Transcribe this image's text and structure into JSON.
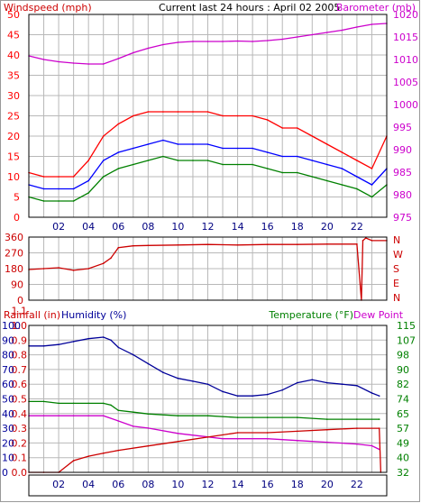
{
  "colors": {
    "windspeed": "#ff0000",
    "gust": "#0000ff",
    "wind_low": "#008000",
    "barometer": "#cc00cc",
    "direction": "#cc0000",
    "rainfall": "#cc0000",
    "humidity": "#000099",
    "temperature": "#008000",
    "dew_point": "#cc00cc",
    "grid": "#b8b8b8",
    "frame": "#000000",
    "background": "#ffffff"
  },
  "chart_data": [
    {
      "type": "line",
      "title": "Current last 24 hours : April 02 2005",
      "left_axis_label": "Windspeed (mph)",
      "right_axis_label": "Barometer (mb)",
      "x_tick_labels": [
        "02",
        "04",
        "06",
        "08",
        "10",
        "12",
        "14",
        "16",
        "18",
        "20",
        "22"
      ],
      "xlim": [
        0,
        24
      ],
      "ylim_left": [
        0,
        50
      ],
      "ylim_right": [
        975,
        1020
      ],
      "y_ticks_left": [
        "0",
        "5",
        "10",
        "15",
        "20",
        "25",
        "30",
        "35",
        "40",
        "45",
        "50"
      ],
      "y_ticks_right": [
        "975",
        "980",
        "985",
        "990",
        "995",
        "1000",
        "1005",
        "1010",
        "1015",
        "1020"
      ],
      "grid": true,
      "series": [
        {
          "key": "gust",
          "axis": "left",
          "x": [
            0,
            1,
            2,
            3,
            4,
            5,
            6,
            7,
            8,
            9,
            10,
            11,
            12,
            13,
            14,
            15,
            16,
            17,
            18,
            19,
            20,
            21,
            22,
            23,
            24
          ],
          "values": [
            11,
            10,
            10,
            10,
            14,
            20,
            23,
            25,
            26,
            26,
            26,
            26,
            26,
            25,
            25,
            25,
            24,
            22,
            22,
            20,
            18,
            16,
            14,
            12,
            20
          ]
        },
        {
          "key": "speed",
          "axis": "left",
          "x": [
            0,
            1,
            2,
            3,
            4,
            5,
            6,
            7,
            8,
            9,
            10,
            11,
            12,
            13,
            14,
            15,
            16,
            17,
            18,
            19,
            20,
            21,
            22,
            23,
            24
          ],
          "values": [
            8,
            7,
            7,
            7,
            9,
            14,
            16,
            17,
            18,
            19,
            18,
            18,
            18,
            17,
            17,
            17,
            16,
            15,
            15,
            14,
            13,
            12,
            10,
            8,
            12
          ]
        },
        {
          "key": "low",
          "axis": "left",
          "x": [
            0,
            1,
            2,
            3,
            4,
            5,
            6,
            7,
            8,
            9,
            10,
            11,
            12,
            13,
            14,
            15,
            16,
            17,
            18,
            19,
            20,
            21,
            22,
            23,
            24
          ],
          "values": [
            5,
            4,
            4,
            4,
            6,
            10,
            12,
            13,
            14,
            15,
            14,
            14,
            14,
            13,
            13,
            13,
            12,
            11,
            11,
            10,
            9,
            8,
            7,
            5,
            8
          ]
        },
        {
          "key": "barometer",
          "axis": "right",
          "x": [
            0,
            1,
            2,
            3,
            4,
            5,
            6,
            7,
            8,
            9,
            10,
            11,
            12,
            13,
            14,
            15,
            16,
            17,
            18,
            19,
            20,
            21,
            22,
            23,
            24
          ],
          "values": [
            1010.8,
            1010,
            1009.5,
            1009.2,
            1009,
            1009,
            1010.2,
            1011.5,
            1012.5,
            1013.3,
            1013.8,
            1014,
            1014,
            1014,
            1014.1,
            1014,
            1014.2,
            1014.5,
            1015,
            1015.5,
            1016,
            1016.5,
            1017.2,
            1017.8,
            1018
          ]
        }
      ]
    },
    {
      "type": "line",
      "y_ticks_left": [
        "0",
        "90",
        "180",
        "270",
        "360"
      ],
      "y_ticks_right": [
        "N",
        "W",
        "S",
        "E",
        "N"
      ],
      "ylim": [
        0,
        360
      ],
      "series": [
        {
          "key": "direction",
          "x": [
            0,
            1,
            2,
            3,
            4,
            5,
            5.5,
            6,
            7,
            8,
            10,
            12,
            14,
            16,
            18,
            20,
            22,
            22.3,
            22.4,
            22.6,
            23,
            24
          ],
          "values": [
            175,
            180,
            185,
            170,
            180,
            210,
            240,
            300,
            310,
            312,
            315,
            318,
            315,
            318,
            318,
            320,
            320,
            0,
            340,
            355,
            340,
            340
          ]
        }
      ]
    },
    {
      "type": "line",
      "left_labels": [
        "Rainfall (in)",
        "Humidity (%)"
      ],
      "right_labels": [
        "Temperature (°F)",
        "Dew Point"
      ],
      "y_ticks_left_rain": [
        "0.0",
        "0.1",
        "0.2",
        "0.3",
        "0.4",
        "0.5",
        "0.6",
        "0.7",
        "0.8",
        "0.9",
        "1.0",
        "1.1"
      ],
      "y_ticks_left_humidity": [
        "0",
        "10",
        "20",
        "30",
        "40",
        "50",
        "60",
        "70",
        "80",
        "90",
        "100"
      ],
      "y_ticks_right": [
        "32",
        "40",
        "49",
        "57",
        "65",
        "74",
        "82",
        "90",
        "98",
        "107",
        "115"
      ],
      "ylim_humidity": [
        0,
        100
      ],
      "ylim_temperature": [
        32,
        115
      ],
      "series": [
        {
          "key": "humidity",
          "x": [
            0,
            1,
            2,
            3,
            4,
            5,
            5.5,
            6,
            7,
            8,
            9,
            10,
            11,
            12,
            13,
            14,
            15,
            16,
            17,
            18,
            19,
            20,
            21,
            22,
            23,
            23.5
          ],
          "values": [
            86,
            86,
            87,
            89,
            91,
            92,
            90,
            85,
            80,
            74,
            68,
            64,
            62,
            60,
            55,
            52,
            52,
            53,
            56,
            61,
            63,
            61,
            60,
            59,
            54,
            52
          ]
        },
        {
          "key": "temperature",
          "x": [
            0,
            1,
            2,
            3,
            4,
            5,
            5.5,
            6,
            7,
            8,
            10,
            12,
            14,
            16,
            18,
            20,
            22,
            23.5
          ],
          "values": [
            72,
            72,
            71,
            71,
            71,
            71,
            70,
            67,
            66,
            65,
            64,
            64,
            63,
            63,
            63,
            62,
            62,
            62
          ]
        },
        {
          "key": "dewpoint",
          "x": [
            0,
            1,
            2,
            3,
            4,
            5,
            6,
            7,
            8,
            10,
            12,
            13,
            14,
            16,
            18,
            20,
            22,
            23,
            23.5
          ],
          "values": [
            64,
            64,
            64,
            64,
            64,
            64,
            61,
            58,
            57,
            54,
            52,
            51,
            51,
            51,
            50,
            49,
            48,
            47,
            45
          ]
        },
        {
          "key": "rainfall",
          "x": [
            0,
            1,
            2,
            3,
            4,
            5,
            6,
            8,
            10,
            12,
            14,
            16,
            18,
            20,
            22,
            23.5,
            23.6
          ],
          "values": [
            0,
            0,
            0,
            0.08,
            0.11,
            0.13,
            0.15,
            0.18,
            0.21,
            0.24,
            0.27,
            0.27,
            0.28,
            0.29,
            0.3,
            0.3,
            0
          ]
        }
      ]
    }
  ]
}
